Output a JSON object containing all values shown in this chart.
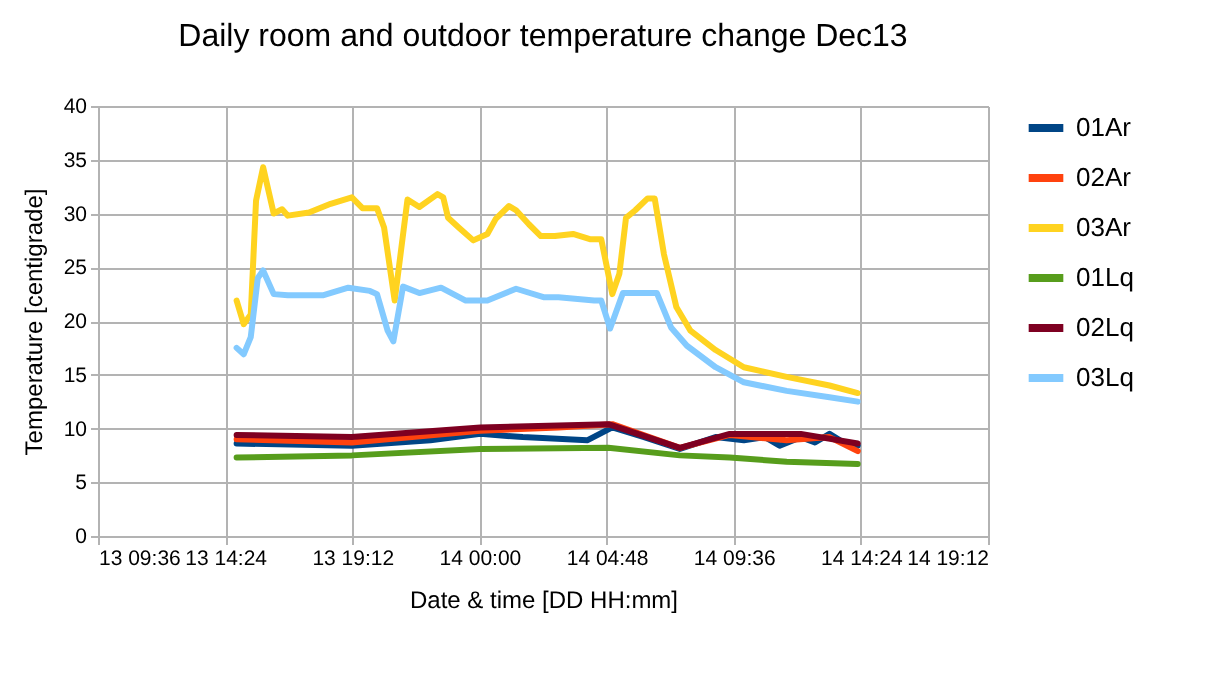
{
  "chart_data": {
    "type": "line",
    "title": "Daily room and outdoor temperature change Dec13",
    "xlabel": "Date & time [DD HH:mm]",
    "ylabel": "Temperature [centigrade]",
    "xlim": [
      "--12-13T09:36",
      "--12-14T19:12"
    ],
    "xticks": [
      {
        "value": "--12-13T09:36",
        "label": "13 09:36"
      },
      {
        "value": "--12-13T14:24",
        "label": "13 14:24"
      },
      {
        "value": "--12-13T19:12",
        "label": "13 19:12"
      },
      {
        "value": "--12-14T00:00",
        "label": "14 00:00"
      },
      {
        "value": "--12-14T04:48",
        "label": "14 04:48"
      },
      {
        "value": "--12-14T09:36",
        "label": "14 09:36"
      },
      {
        "value": "--12-14T14:24",
        "label": "14 14:24"
      },
      {
        "value": "--12-14T19:12",
        "label": "14 19:12"
      }
    ],
    "ylim": [
      0,
      40
    ],
    "yticks": [
      0,
      5,
      10,
      15,
      20,
      25,
      30,
      35,
      40
    ],
    "grid": true,
    "legend": "right",
    "marker": "none",
    "line_style": "solid",
    "series": [
      {
        "name": "01Ar",
        "color": "#004586",
        "x": [
          "--12-13T14:50",
          "--12-13T19:11",
          "--12-13T22:09",
          "--12-14T00:02",
          "--12-14T01:38",
          "--12-14T04:04",
          "--12-14T05:01",
          "--12-14T06:13",
          "--12-14T07:34",
          "--12-14T08:55",
          "--12-14T09:59",
          "--12-14T10:47",
          "--12-14T11:20",
          "--12-14T12:08",
          "--12-14T12:40",
          "--12-14T13:13",
          "--12-14T13:45",
          "--12-14T14:17"
        ],
        "values": [
          8.6,
          8.4,
          8.9,
          9.5,
          9.2,
          8.9,
          10.1,
          9.2,
          8.1,
          9.2,
          8.9,
          9.2,
          8.4,
          9.2,
          8.7,
          9.5,
          8.7,
          8.4
        ]
      },
      {
        "name": "02Ar",
        "color": "#ff420e",
        "x": [
          "--12-13T14:50",
          "--12-13T19:11",
          "--12-14T00:02",
          "--12-14T02:59",
          "--12-14T05:01",
          "--12-14T07:34",
          "--12-14T09:27",
          "--12-14T11:36",
          "--12-14T13:13",
          "--12-14T14:17"
        ],
        "values": [
          9.0,
          8.7,
          9.8,
          10.1,
          10.4,
          8.2,
          9.4,
          8.9,
          9.2,
          7.9
        ]
      },
      {
        "name": "03Ar",
        "color": "#ffd320",
        "x": [
          "--12-13T14:50",
          "--12-13T15:06",
          "--12-13T15:22",
          "--12-13T15:34",
          "--12-13T15:50",
          "--12-13T16:14",
          "--12-13T16:33",
          "--12-13T16:46",
          "--12-13T17:34",
          "--12-13T18:23",
          "--12-13T19:11",
          "--12-13T19:35",
          "--12-13T20:08",
          "--12-13T20:24",
          "--12-13T20:48",
          "--12-13T21:17",
          "--12-13T21:44",
          "--12-13T22:25",
          "--12-13T22:38",
          "--12-13T22:49",
          "--12-13T23:13",
          "--12-13T23:46",
          "--12-14T00:18",
          "--12-14T00:37",
          "--12-14T01:07",
          "--12-14T01:23",
          "--12-14T01:52",
          "--12-14T02:19",
          "--12-14T02:51",
          "--12-14T03:32",
          "--12-14T04:12",
          "--12-14T04:36",
          "--12-14T05:01",
          "--12-14T05:17",
          "--12-14T05:32",
          "--12-14T05:53",
          "--12-14T06:21",
          "--12-14T06:37",
          "--12-14T06:58",
          "--12-14T07:26",
          "--12-14T07:58",
          "--12-14T08:55",
          "--12-14T09:59",
          "--12-14T11:36",
          "--12-14T13:13",
          "--12-14T14:17"
        ],
        "values": [
          21.9,
          19.7,
          20.6,
          31.2,
          34.3,
          30.0,
          30.4,
          29.8,
          30.1,
          30.9,
          31.5,
          30.5,
          30.5,
          28.7,
          21.9,
          31.3,
          30.6,
          31.8,
          31.5,
          29.6,
          28.7,
          27.5,
          28.1,
          29.5,
          30.7,
          30.3,
          29.0,
          27.9,
          27.9,
          28.1,
          27.6,
          27.6,
          22.5,
          24.4,
          29.6,
          30.3,
          31.4,
          31.4,
          26.2,
          21.3,
          19.1,
          17.3,
          15.7,
          14.8,
          14.0,
          13.3
        ]
      },
      {
        "name": "01Lq",
        "color": "#579d1c",
        "x": [
          "--12-13T14:50",
          "--12-13T19:11",
          "--12-14T00:02",
          "--12-14T04:52",
          "--12-14T07:34",
          "--12-14T09:27",
          "--12-14T11:36",
          "--12-14T14:17"
        ],
        "values": [
          7.3,
          7.5,
          8.1,
          8.2,
          7.5,
          7.3,
          6.9,
          6.7
        ]
      },
      {
        "name": "02Lq",
        "color": "#7e0021",
        "x": [
          "--12-13T14:50",
          "--12-13T19:11",
          "--12-14T00:02",
          "--12-14T04:52",
          "--12-14T07:34",
          "--12-14T09:27",
          "--12-14T12:08",
          "--12-14T14:17"
        ],
        "values": [
          9.4,
          9.2,
          10.1,
          10.4,
          8.2,
          9.5,
          9.5,
          8.6
        ]
      },
      {
        "name": "03Lq",
        "color": "#83caff",
        "x": [
          "--12-13T14:50",
          "--12-13T15:06",
          "--12-13T15:22",
          "--12-13T15:38",
          "--12-13T15:50",
          "--12-13T16:14",
          "--12-13T16:46",
          "--12-13T18:07",
          "--12-13T19:03",
          "--12-13T19:52",
          "--12-13T20:08",
          "--12-13T20:32",
          "--12-13T20:45",
          "--12-13T21:07",
          "--12-13T21:44",
          "--12-13T22:33",
          "--12-13T23:29",
          "--12-14T00:18",
          "--12-14T01:23",
          "--12-14T02:27",
          "--12-14T02:59",
          "--12-14T04:20",
          "--12-14T04:36",
          "--12-14T04:56",
          "--12-14T05:25",
          "--12-14T06:13",
          "--12-14T06:42",
          "--12-14T07:14",
          "--12-14T07:50",
          "--12-14T08:55",
          "--12-14T09:59",
          "--12-14T11:36",
          "--12-14T13:13",
          "--12-14T14:17"
        ],
        "values": [
          17.5,
          16.9,
          18.5,
          24.0,
          24.7,
          22.5,
          22.4,
          22.4,
          23.1,
          22.8,
          22.5,
          19.1,
          18.1,
          23.2,
          22.6,
          23.1,
          21.9,
          21.9,
          23.0,
          22.2,
          22.2,
          21.9,
          21.9,
          19.3,
          22.6,
          22.6,
          22.6,
          19.4,
          17.7,
          15.7,
          14.3,
          13.5,
          12.9,
          12.5
        ]
      }
    ]
  }
}
